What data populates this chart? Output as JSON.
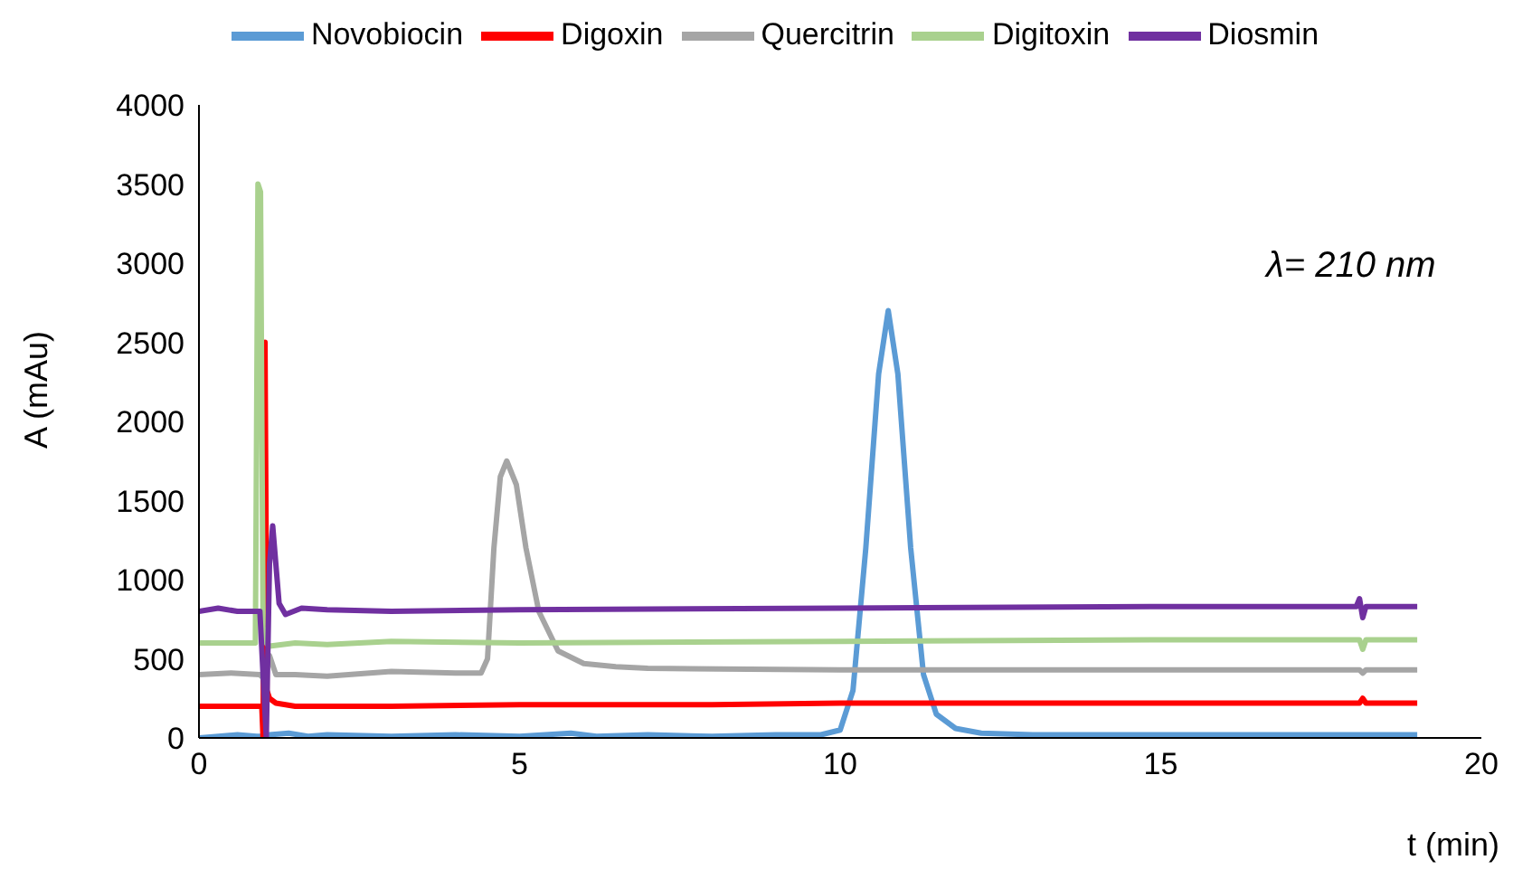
{
  "chart_data": {
    "type": "line",
    "xlabel": "t (min)",
    "ylabel": "A (mAu)",
    "annotations": [
      "λ= 210 nm"
    ],
    "xlim": [
      0,
      20
    ],
    "xticks": [
      0,
      5,
      10,
      15,
      20
    ],
    "ylim": [
      0,
      4000
    ],
    "yticks": [
      0,
      500,
      1000,
      1500,
      2000,
      2500,
      3000,
      3500,
      4000
    ],
    "grid": false,
    "legend": "top",
    "marker": "none",
    "line_style": "solid",
    "series": [
      {
        "name": "Novobiocin",
        "color": "#5b9bd5",
        "x": [
          0,
          0.3,
          0.6,
          0.9,
          1.0,
          1.02,
          1.05,
          1.1,
          1.4,
          1.7,
          2,
          3,
          4,
          5,
          5.8,
          6.2,
          7,
          8,
          9,
          9.7,
          10.0,
          10.2,
          10.4,
          10.6,
          10.75,
          10.9,
          11.1,
          11.3,
          11.5,
          11.8,
          12.2,
          13,
          15,
          17,
          19
        ],
        "values": [
          0,
          10,
          20,
          10,
          10,
          120,
          10,
          20,
          30,
          10,
          20,
          10,
          20,
          10,
          30,
          10,
          20,
          10,
          20,
          20,
          50,
          300,
          1200,
          2300,
          2700,
          2300,
          1200,
          400,
          150,
          60,
          30,
          20,
          20,
          20,
          20
        ]
      },
      {
        "name": "Digoxin",
        "color": "#ff0000",
        "x": [
          0,
          0.5,
          0.98,
          1.0,
          1.03,
          1.06,
          1.1,
          1.2,
          1.5,
          2,
          3,
          5,
          8,
          10,
          12,
          15,
          18.1,
          18.15,
          18.2,
          19
        ],
        "values": [
          200,
          200,
          200,
          0,
          2500,
          300,
          250,
          220,
          200,
          200,
          200,
          210,
          210,
          220,
          220,
          220,
          220,
          250,
          220,
          220
        ]
      },
      {
        "name": "Quercitrin",
        "color": "#a5a5a5",
        "x": [
          0,
          0.5,
          0.95,
          1.0,
          1.1,
          1.2,
          1.5,
          2,
          3,
          4,
          4.4,
          4.5,
          4.6,
          4.7,
          4.8,
          4.95,
          5.1,
          5.3,
          5.6,
          6,
          6.5,
          7,
          10,
          15,
          18.1,
          18.15,
          18.2,
          19
        ],
        "values": [
          400,
          410,
          400,
          380,
          520,
          400,
          400,
          390,
          420,
          410,
          410,
          500,
          1200,
          1650,
          1750,
          1600,
          1200,
          800,
          550,
          470,
          450,
          440,
          430,
          430,
          430,
          410,
          430,
          430
        ]
      },
      {
        "name": "Digitoxin",
        "color": "#a9d18e",
        "x": [
          0,
          0.5,
          0.88,
          0.92,
          0.96,
          1.0,
          1.05,
          1.1,
          1.5,
          2,
          3,
          5,
          10,
          15,
          18.1,
          18.15,
          18.2,
          19
        ],
        "values": [
          600,
          600,
          600,
          3500,
          3450,
          700,
          600,
          580,
          600,
          590,
          610,
          600,
          610,
          620,
          620,
          560,
          620,
          620
        ]
      },
      {
        "name": "Diosmin",
        "color": "#7030a0",
        "x": [
          0,
          0.3,
          0.6,
          0.95,
          1.05,
          1.1,
          1.15,
          1.25,
          1.35,
          1.6,
          2,
          3,
          5,
          10,
          15,
          18.05,
          18.1,
          18.15,
          18.2,
          19
        ],
        "values": [
          800,
          820,
          800,
          800,
          0,
          1100,
          1340,
          850,
          780,
          820,
          810,
          800,
          810,
          820,
          830,
          830,
          880,
          760,
          830,
          830
        ]
      }
    ]
  }
}
